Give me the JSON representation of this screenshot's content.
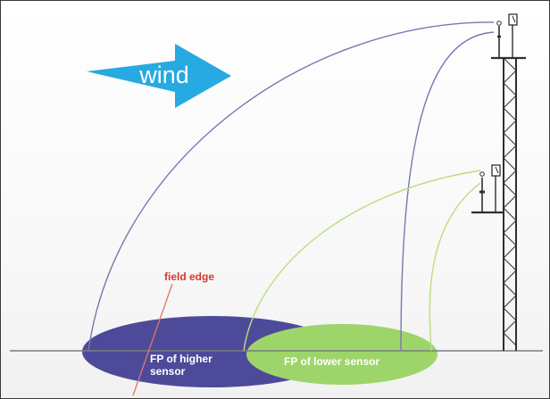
{
  "labels": {
    "wind": "wind",
    "field_edge": "field edge",
    "fp_higher_line1": "FP of higher",
    "fp_higher_line2": "sensor",
    "fp_lower": "FP of lower sensor"
  },
  "colors": {
    "wind_arrow": "#27a9e1",
    "wind_text": "#ffffff",
    "fp_higher": "#4e4a9a",
    "fp_lower": "#9ed56a",
    "higher_path": "#7a77b0",
    "lower_path": "#b9de7e",
    "field_edge": "#d9362b",
    "field_edge_line": "#e1756b",
    "ground": "#7b7b7b",
    "tower": "#2f2f2f"
  },
  "icons": {
    "wind": "wind-arrow-icon",
    "upper_sensor": "upper-sensor-icon",
    "lower_sensor": "lower-sensor-icon",
    "tower": "lattice-tower-icon"
  }
}
